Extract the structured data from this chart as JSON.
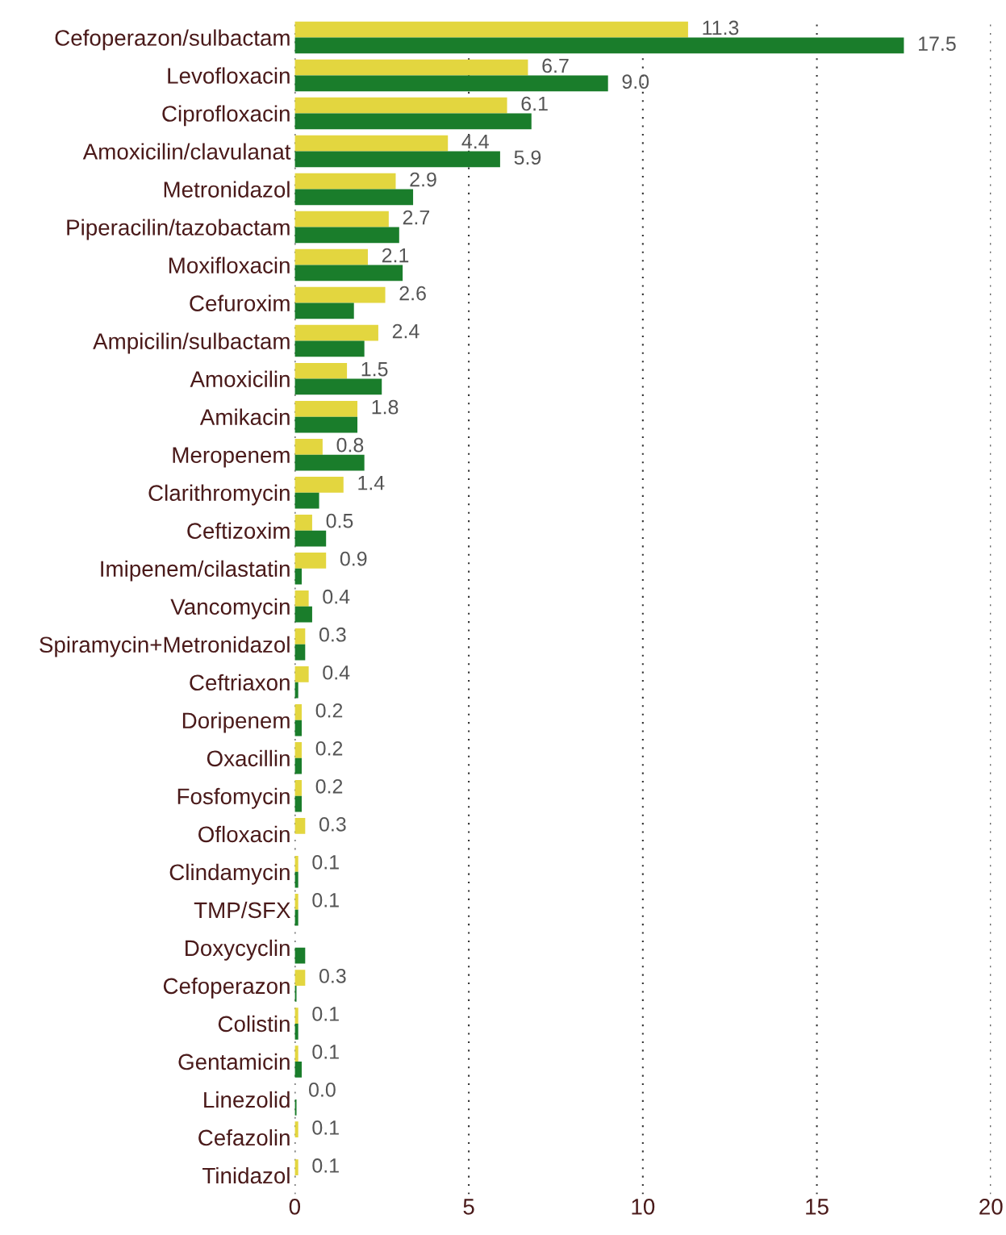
{
  "chart_data": {
    "type": "bar",
    "orientation": "horizontal",
    "categories": [
      "Cefoperazon/sulbactam",
      "Levofloxacin",
      "Ciprofloxacin",
      "Amoxicilin/clavulanat",
      "Metronidazol",
      "Piperacilin/tazobactam",
      "Moxifloxacin",
      "Cefuroxim",
      "Ampicilin/sulbactam",
      "Amoxicilin",
      "Amikacin",
      "Meropenem",
      "Clarithromycin",
      "Ceftizoxim",
      "Imipenem/cilastatin",
      "Vancomycin",
      "Spiramycin+Metronidazol",
      "Ceftriaxon",
      "Doripenem",
      "Oxacillin",
      "Fosfomycin",
      "Ofloxacin",
      "Clindamycin",
      "TMP/SFX",
      "Doxycyclin",
      "Cefoperazon",
      "Colistin",
      "Gentamicin",
      "Linezolid",
      "Cefazolin",
      "Tinidazol"
    ],
    "series": [
      {
        "color": "#e3d63f",
        "values": [
          11.3,
          6.7,
          6.1,
          4.4,
          2.9,
          2.7,
          2.1,
          2.6,
          2.4,
          1.5,
          1.8,
          0.8,
          1.4,
          0.5,
          0.9,
          0.4,
          0.3,
          0.4,
          0.2,
          0.2,
          0.2,
          0.3,
          0.1,
          0.1,
          0,
          0.3,
          0.1,
          0.1,
          0.0,
          0.1,
          0.1
        ],
        "value_labels": [
          "11.3",
          "6.7",
          "6.1",
          "4.4",
          "2.9",
          "2.7",
          "2.1",
          "2.6",
          "2.4",
          "1.5",
          "1.8",
          "0.8",
          "1.4",
          "0.5",
          "0.9",
          "0.4",
          "0.3",
          "0.4",
          "0.2",
          "0.2",
          "0.2",
          "0.3",
          "0.1",
          "0.1",
          null,
          "0.3",
          "0.1",
          "0.1",
          "0.0",
          "0.1",
          "0.1"
        ]
      },
      {
        "color": "#1a7d2b",
        "values": [
          17.5,
          9.0,
          6.8,
          5.9,
          3.4,
          3.0,
          3.1,
          1.7,
          2.0,
          2.5,
          1.8,
          2.0,
          0.7,
          0.9,
          0.2,
          0.5,
          0.3,
          0.1,
          0.2,
          0.2,
          0.2,
          0.0,
          0.1,
          0.1,
          0.3,
          0.05,
          0.1,
          0.2,
          0.05,
          0,
          0
        ],
        "value_labels": [
          "17.5",
          "9.0",
          null,
          "5.9",
          null,
          null,
          null,
          null,
          null,
          null,
          null,
          null,
          null,
          null,
          null,
          null,
          null,
          null,
          null,
          null,
          null,
          null,
          null,
          null,
          null,
          null,
          null,
          null,
          null,
          null,
          null
        ]
      }
    ],
    "xlim": [
      0,
      20
    ],
    "xticks": [
      0,
      5,
      10,
      15,
      20
    ],
    "grid": "x"
  }
}
